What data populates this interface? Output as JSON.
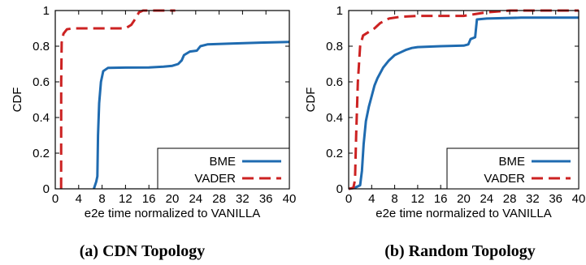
{
  "chart_data": [
    {
      "type": "line",
      "caption": "(a) CDN Topology",
      "xlabel": "e2e time normalized to VANILLA",
      "ylabel": "CDF",
      "xlim": [
        0,
        40
      ],
      "ylim": [
        0,
        1
      ],
      "xticks": [
        "0",
        "4",
        "8",
        "12",
        "16",
        "20",
        "24",
        "28",
        "32",
        "36",
        "40"
      ],
      "yticks": [
        "0",
        "0.2",
        "0.4",
        "0.6",
        "0.8",
        "1"
      ],
      "grid": false,
      "legend_position": "bottom-right",
      "series": [
        {
          "name": "BME",
          "color": "#1f6bb0",
          "dash": "solid",
          "points": [
            [
              6.6,
              0
            ],
            [
              7.0,
              0.04
            ],
            [
              7.2,
              0.07
            ],
            [
              7.3,
              0.3
            ],
            [
              7.5,
              0.48
            ],
            [
              7.8,
              0.6
            ],
            [
              8.2,
              0.66
            ],
            [
              9,
              0.678
            ],
            [
              12,
              0.68
            ],
            [
              16,
              0.681
            ],
            [
              18.5,
              0.685
            ],
            [
              20,
              0.69
            ],
            [
              21,
              0.7
            ],
            [
              21.6,
              0.72
            ],
            [
              22.0,
              0.75
            ],
            [
              23,
              0.77
            ],
            [
              24.2,
              0.775
            ],
            [
              24.8,
              0.8
            ],
            [
              26,
              0.81
            ],
            [
              30,
              0.815
            ],
            [
              35,
              0.82
            ],
            [
              40,
              0.824
            ]
          ]
        },
        {
          "name": "VADER",
          "color": "#cc2222",
          "dash": "dashed",
          "points": [
            [
              1.0,
              0
            ],
            [
              1.02,
              0.6
            ],
            [
              1.1,
              0.82
            ],
            [
              1.4,
              0.87
            ],
            [
              2.0,
              0.895
            ],
            [
              3,
              0.9
            ],
            [
              12,
              0.9
            ],
            [
              13,
              0.92
            ],
            [
              13.8,
              0.96
            ],
            [
              14.3,
              0.99
            ],
            [
              15,
              1.0
            ],
            [
              20.5,
              1.0
            ]
          ]
        }
      ]
    },
    {
      "type": "line",
      "caption": "(b) Random Topology",
      "xlabel": "e2e time normalized to VANILLA",
      "ylabel": "CDF",
      "xlim": [
        0,
        40
      ],
      "ylim": [
        0,
        1
      ],
      "xticks": [
        "0",
        "4",
        "8",
        "12",
        "16",
        "20",
        "24",
        "28",
        "32",
        "36",
        "40"
      ],
      "yticks": [
        "0",
        "0.2",
        "0.4",
        "0.6",
        "0.8",
        "1"
      ],
      "grid": false,
      "legend_position": "bottom-right",
      "series": [
        {
          "name": "BME",
          "color": "#1f6bb0",
          "dash": "solid",
          "points": [
            [
              0,
              0
            ],
            [
              1,
              0.005
            ],
            [
              2,
              0.02
            ],
            [
              2.3,
              0.1
            ],
            [
              2.6,
              0.25
            ],
            [
              3,
              0.38
            ],
            [
              3.5,
              0.46
            ],
            [
              4,
              0.52
            ],
            [
              4.5,
              0.58
            ],
            [
              5,
              0.62
            ],
            [
              6,
              0.68
            ],
            [
              7,
              0.72
            ],
            [
              8,
              0.75
            ],
            [
              9,
              0.765
            ],
            [
              10,
              0.78
            ],
            [
              11,
              0.79
            ],
            [
              12,
              0.795
            ],
            [
              16,
              0.8
            ],
            [
              20,
              0.803
            ],
            [
              20.8,
              0.81
            ],
            [
              21.2,
              0.84
            ],
            [
              22,
              0.85
            ],
            [
              22.3,
              0.95
            ],
            [
              24,
              0.955
            ],
            [
              30,
              0.96
            ],
            [
              40,
              0.96
            ]
          ]
        },
        {
          "name": "VADER",
          "color": "#cc2222",
          "dash": "dashed",
          "points": [
            [
              0,
              0
            ],
            [
              0.8,
              0.005
            ],
            [
              1.1,
              0.05
            ],
            [
              1.3,
              0.3
            ],
            [
              1.6,
              0.6
            ],
            [
              2,
              0.8
            ],
            [
              2.5,
              0.86
            ],
            [
              3.5,
              0.88
            ],
            [
              4.5,
              0.9
            ],
            [
              5.5,
              0.93
            ],
            [
              7,
              0.955
            ],
            [
              9,
              0.965
            ],
            [
              12,
              0.97
            ],
            [
              16,
              0.97
            ],
            [
              20,
              0.97
            ],
            [
              22,
              0.98
            ],
            [
              24,
              0.99
            ],
            [
              28,
              1.0
            ],
            [
              40,
              1.0
            ]
          ]
        }
      ]
    }
  ]
}
